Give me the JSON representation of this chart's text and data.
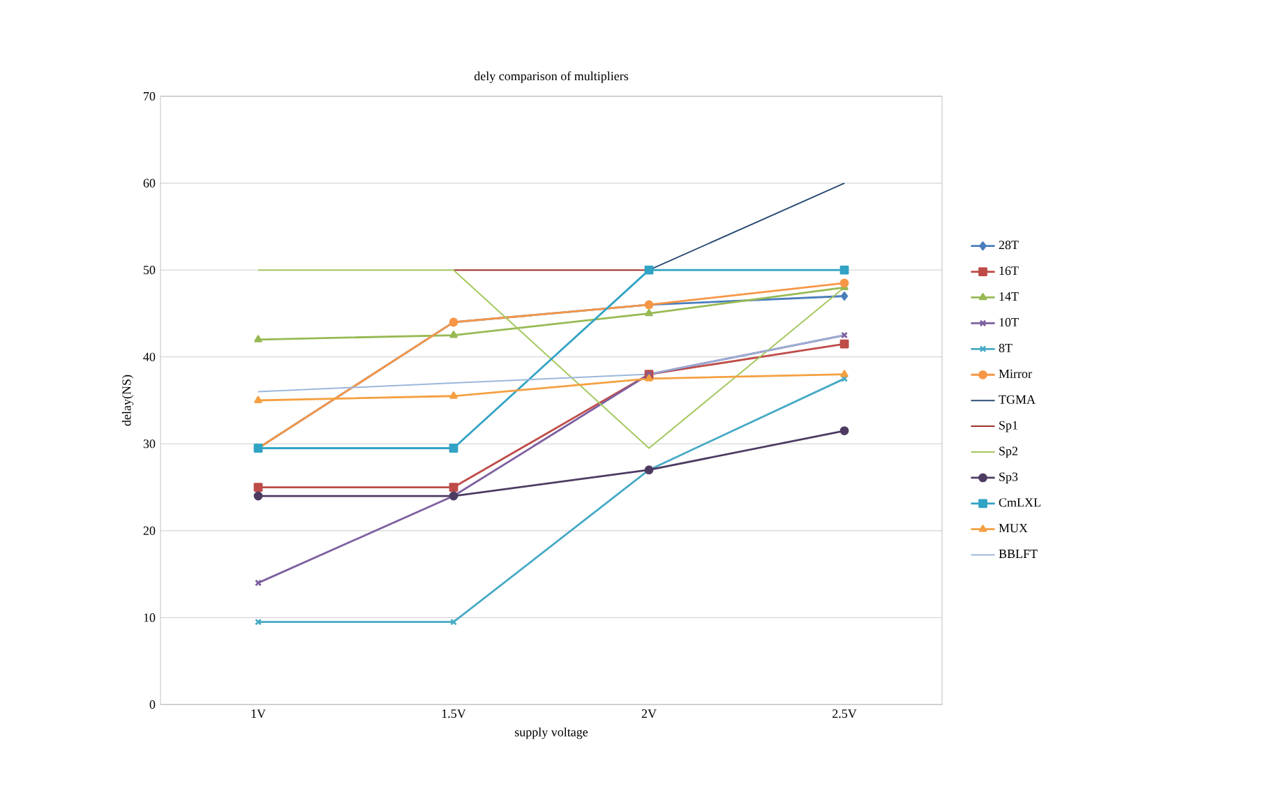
{
  "chart_data": {
    "type": "line",
    "title": "dely comparison of multipliers",
    "xlabel": "supply voltage",
    "ylabel": "delay(NS)",
    "categories": [
      "1V",
      "1.5V",
      "2V",
      "2.5V"
    ],
    "ylim": [
      0,
      70
    ],
    "yticks": [
      0,
      10,
      20,
      30,
      40,
      50,
      60,
      70
    ],
    "grid": "y",
    "legend": "right",
    "series": [
      {
        "name": "28T",
        "color": "#4a7ebb",
        "marker": "diamond",
        "values": [
          29.5,
          44,
          46,
          47
        ]
      },
      {
        "name": "16T",
        "color": "#be4b48",
        "marker": "square",
        "values": [
          25,
          25,
          38,
          41.5
        ]
      },
      {
        "name": "14T",
        "color": "#98b954",
        "marker": "triangle",
        "values": [
          42,
          42.5,
          45,
          48
        ]
      },
      {
        "name": "10T",
        "color": "#7d60a0",
        "marker": "cross",
        "values": [
          14,
          24,
          38,
          42.5
        ]
      },
      {
        "name": "8T",
        "color": "#46aac5",
        "marker": "cross",
        "values": [
          9.5,
          9.5,
          27,
          37.5
        ]
      },
      {
        "name": "Mirror",
        "color": "#f79646",
        "marker": "circle",
        "values": [
          29.5,
          44,
          46,
          48.5
        ]
      },
      {
        "name": "TGMA",
        "color": "#2c4d75",
        "marker": "none",
        "values": [
          null,
          null,
          50,
          60
        ]
      },
      {
        "name": "Sp1",
        "color": "#a0312e",
        "marker": "none",
        "values": [
          null,
          50,
          50,
          null
        ]
      },
      {
        "name": "Sp2",
        "color": "#a5c85f",
        "marker": "none",
        "values": [
          50,
          50,
          29.5,
          48
        ]
      },
      {
        "name": "Sp3",
        "color": "#4d3b62",
        "marker": "circle",
        "values": [
          24,
          24,
          27,
          31.5
        ]
      },
      {
        "name": "CmLXL",
        "color": "#31a3c4",
        "marker": "square",
        "values": [
          29.5,
          29.5,
          50,
          50
        ]
      },
      {
        "name": "MUX",
        "color": "#f4a040",
        "marker": "triangle",
        "values": [
          35,
          35.5,
          37.5,
          38
        ]
      },
      {
        "name": "BBLFT",
        "color": "#9bb7dc",
        "marker": "none",
        "values": [
          36,
          37,
          38,
          42.5
        ]
      }
    ]
  }
}
